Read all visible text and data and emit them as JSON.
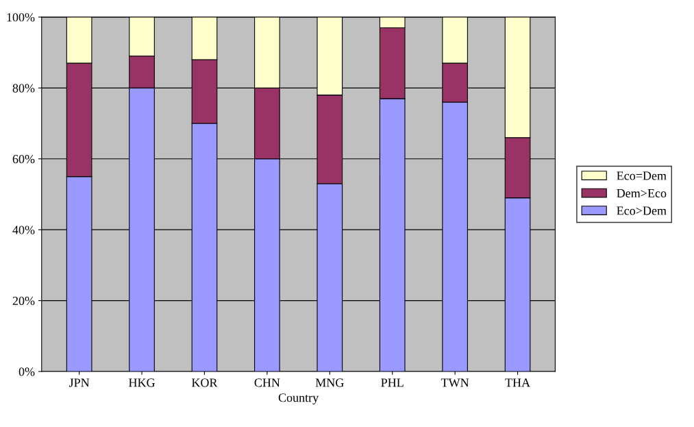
{
  "chart_data": {
    "type": "bar",
    "stacked": true,
    "xlabel": "Country",
    "categories": [
      "JPN",
      "HKG",
      "KOR",
      "CHN",
      "MNG",
      "PHL",
      "TWN",
      "THA"
    ],
    "series": [
      {
        "name": "Eco>Dem",
        "color": "#9999ff",
        "values": [
          55,
          80,
          70,
          60,
          53,
          77,
          76,
          49
        ]
      },
      {
        "name": "Dem>Eco",
        "color": "#993366",
        "values": [
          32,
          9,
          18,
          20,
          25,
          20,
          11,
          17
        ]
      },
      {
        "name": "Eco=Dem",
        "color": "#ffffcc",
        "values": [
          13,
          11,
          12,
          20,
          22,
          3,
          13,
          34
        ]
      }
    ],
    "ylim": [
      0,
      100
    ],
    "yticks": [
      {
        "value": 0,
        "label": "0%"
      },
      {
        "value": 20,
        "label": "20%"
      },
      {
        "value": 40,
        "label": "40%"
      },
      {
        "value": 60,
        "label": "60%"
      },
      {
        "value": 80,
        "label": "80%"
      },
      {
        "value": 100,
        "label": "100%"
      }
    ],
    "grid": "y",
    "legend": "right"
  }
}
